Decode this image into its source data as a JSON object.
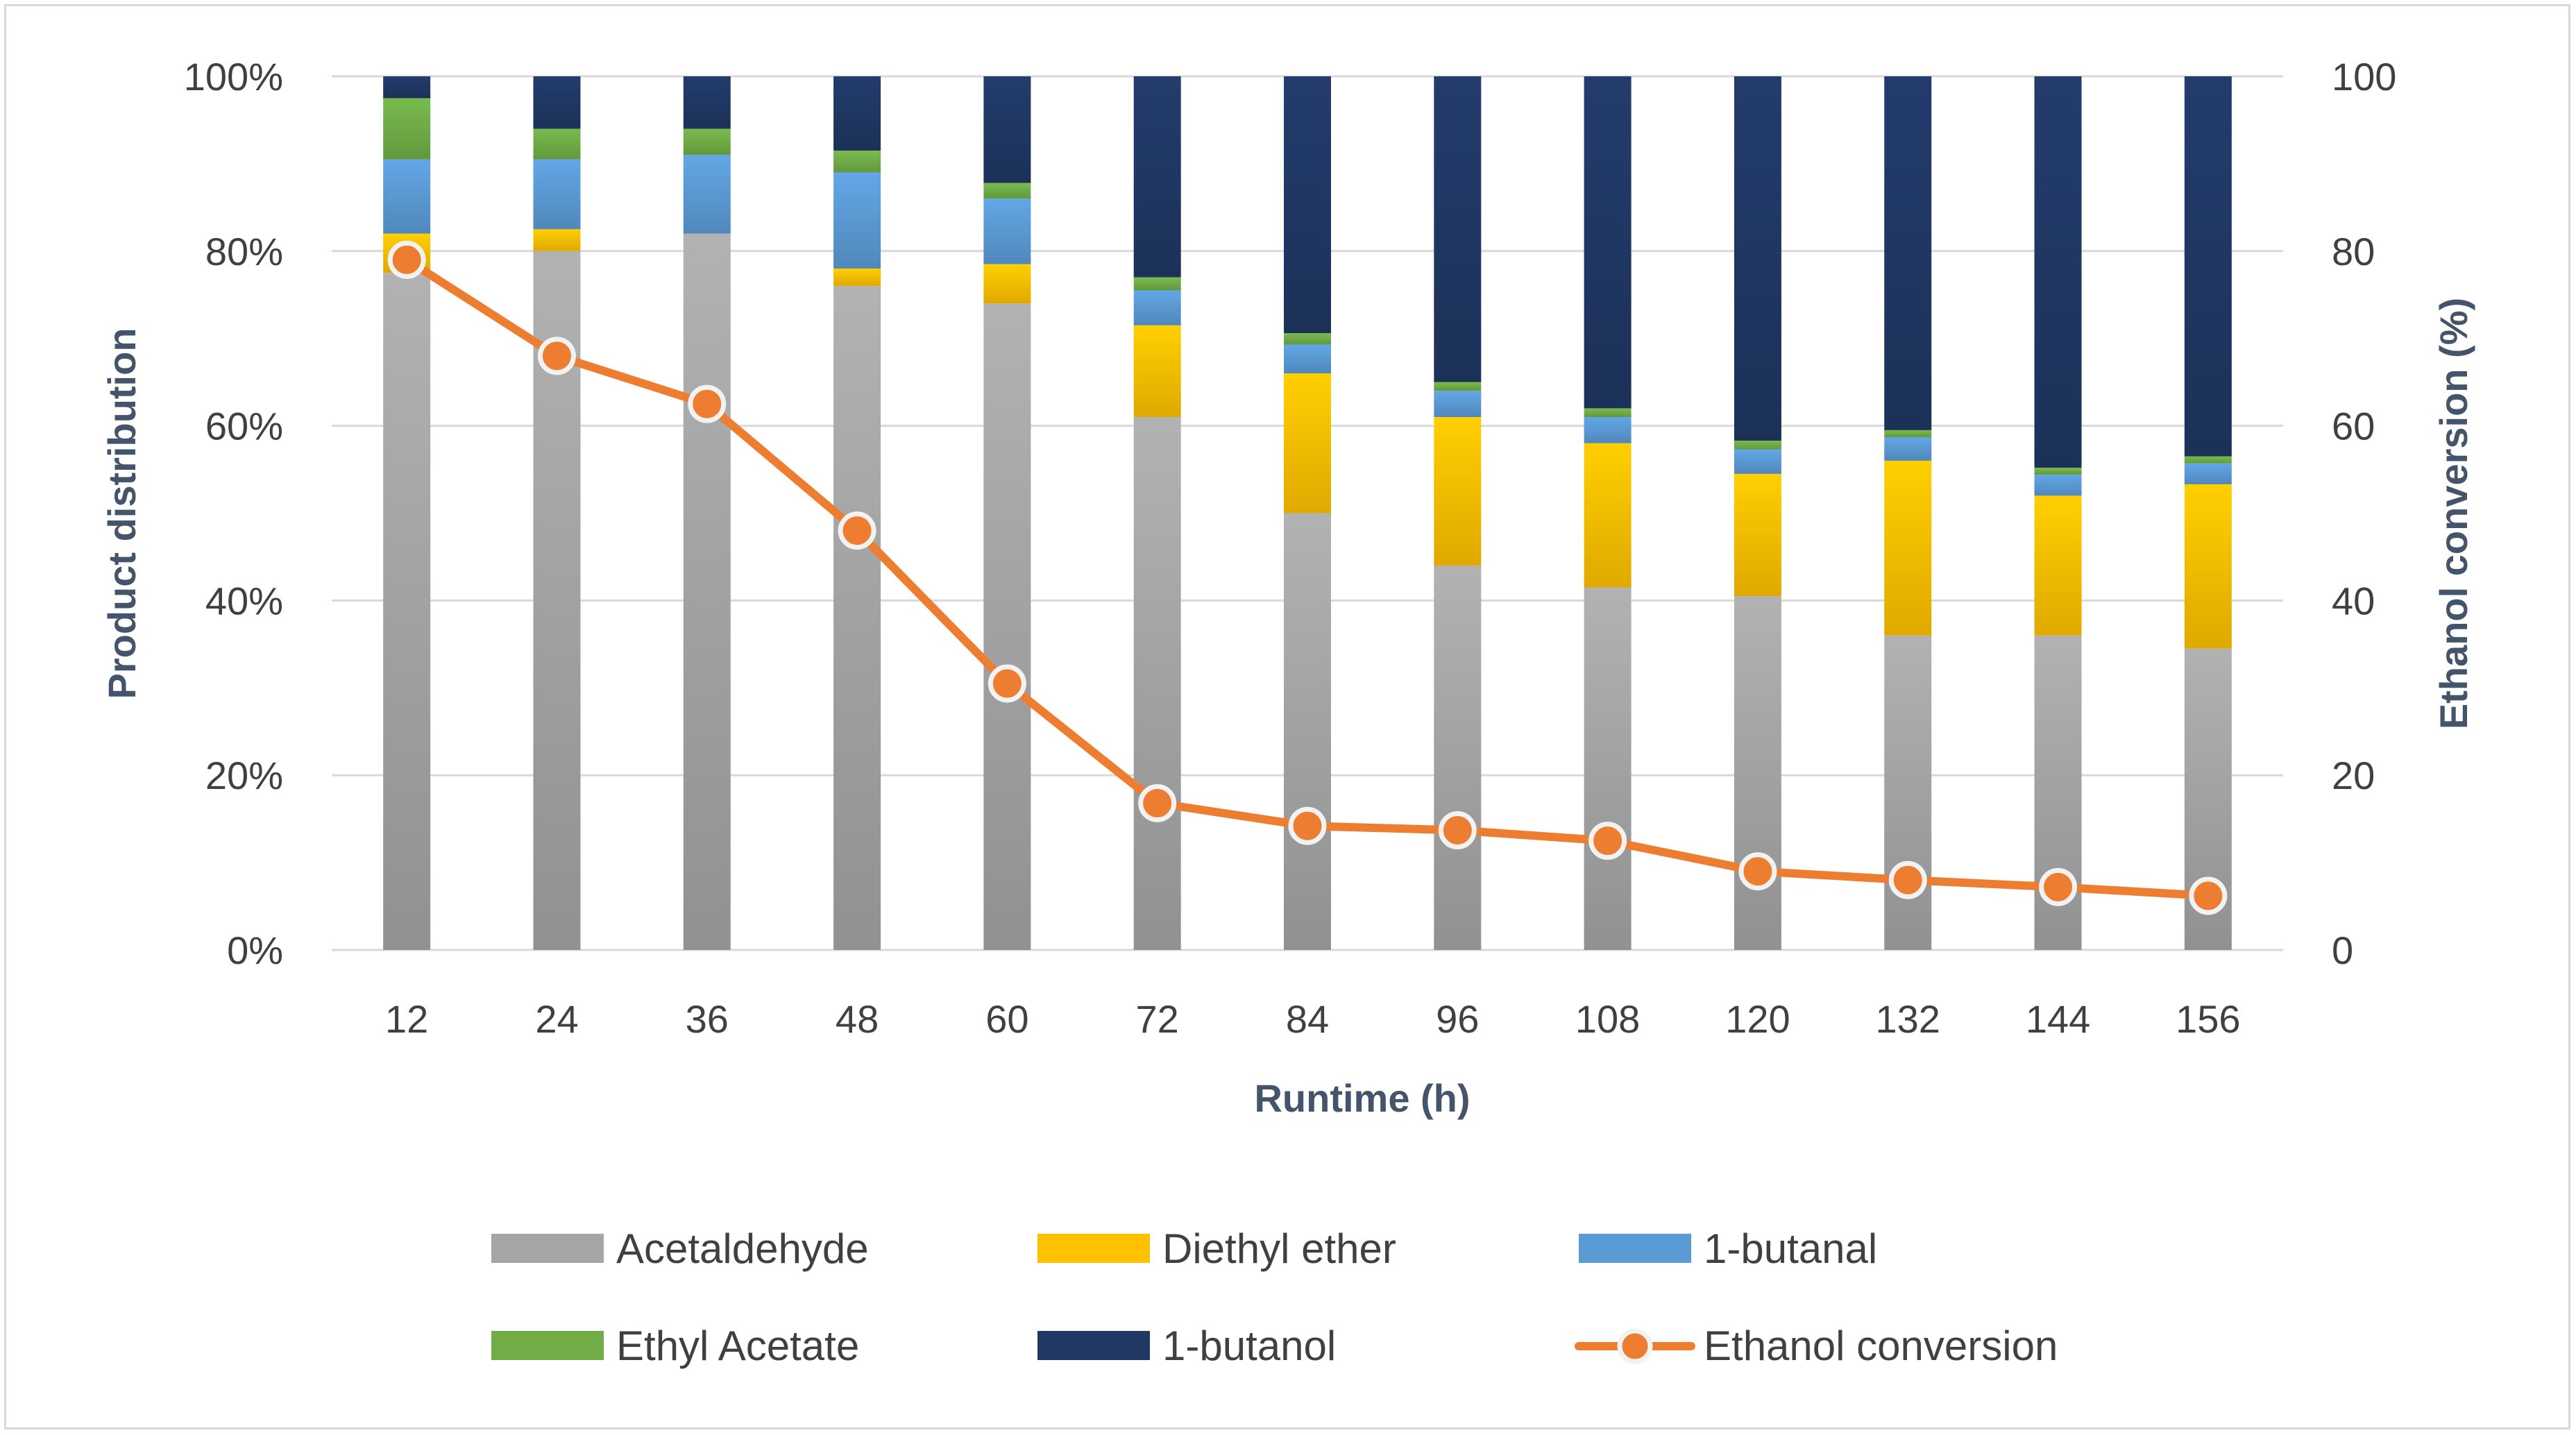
{
  "chart_data": {
    "type": "bar",
    "stacked": true,
    "percent_stacked": true,
    "title": "",
    "categories": [
      "12",
      "24",
      "36",
      "48",
      "60",
      "72",
      "84",
      "96",
      "108",
      "120",
      "132",
      "144",
      "156"
    ],
    "series": [
      {
        "name": "Acetaldehyde",
        "color": "#a5a5a5",
        "values": [
          77.5,
          80,
          82,
          76,
          74,
          61,
          50,
          44,
          41.5,
          40.5,
          36,
          36,
          34.5
        ]
      },
      {
        "name": "Diethyl ether",
        "color": "#ffc000",
        "values": [
          4.5,
          2.5,
          0,
          2,
          4.5,
          10.5,
          16,
          17,
          16.5,
          14,
          20,
          16,
          18.8
        ]
      },
      {
        "name": "1-butanal",
        "color": "#5b9bd5",
        "values": [
          8.5,
          8,
          9,
          11,
          7.5,
          4,
          3.3,
          3,
          3,
          2.8,
          2.7,
          2.4,
          2.4
        ]
      },
      {
        "name": "Ethyl Acetate",
        "color": "#70ad47",
        "values": [
          7,
          3.5,
          3,
          2.5,
          1.8,
          1.5,
          1.3,
          1,
          1,
          1,
          0.8,
          0.8,
          0.8
        ]
      },
      {
        "name": "1-butanol",
        "color": "#203864",
        "values": [
          2.5,
          6,
          6,
          8.5,
          12.2,
          23,
          29.4,
          35,
          38,
          41.7,
          40.5,
          44.8,
          43.5
        ]
      }
    ],
    "line_series": {
      "name": "Ethanol conversion",
      "color": "#ed7d31",
      "axis": "right",
      "values": [
        79,
        68,
        62.5,
        48,
        30.5,
        16.8,
        14.2,
        13.7,
        12.5,
        9,
        8,
        7.2,
        6.2
      ]
    },
    "xlabel": "Runtime (h)",
    "ylabel": "Product distribution",
    "y2label": "Ethanol conversion (%)",
    "ylim": [
      0,
      100
    ],
    "y2lim": [
      0,
      100
    ],
    "y_ticks": [
      "0%",
      "20%",
      "40%",
      "60%",
      "80%",
      "100%"
    ],
    "y2_ticks": [
      "0",
      "20",
      "40",
      "60",
      "80",
      "100"
    ],
    "grid": true,
    "legend_position": "bottom",
    "legend": [
      "Acetaldehyde",
      "Diethyl ether",
      "1-butanal",
      "Ethyl Acetate",
      "1-butanol",
      "Ethanol conversion"
    ]
  },
  "colors": {
    "axis_text": "#44546a",
    "tick_text": "#404040",
    "grid": "#d9d9d9"
  }
}
